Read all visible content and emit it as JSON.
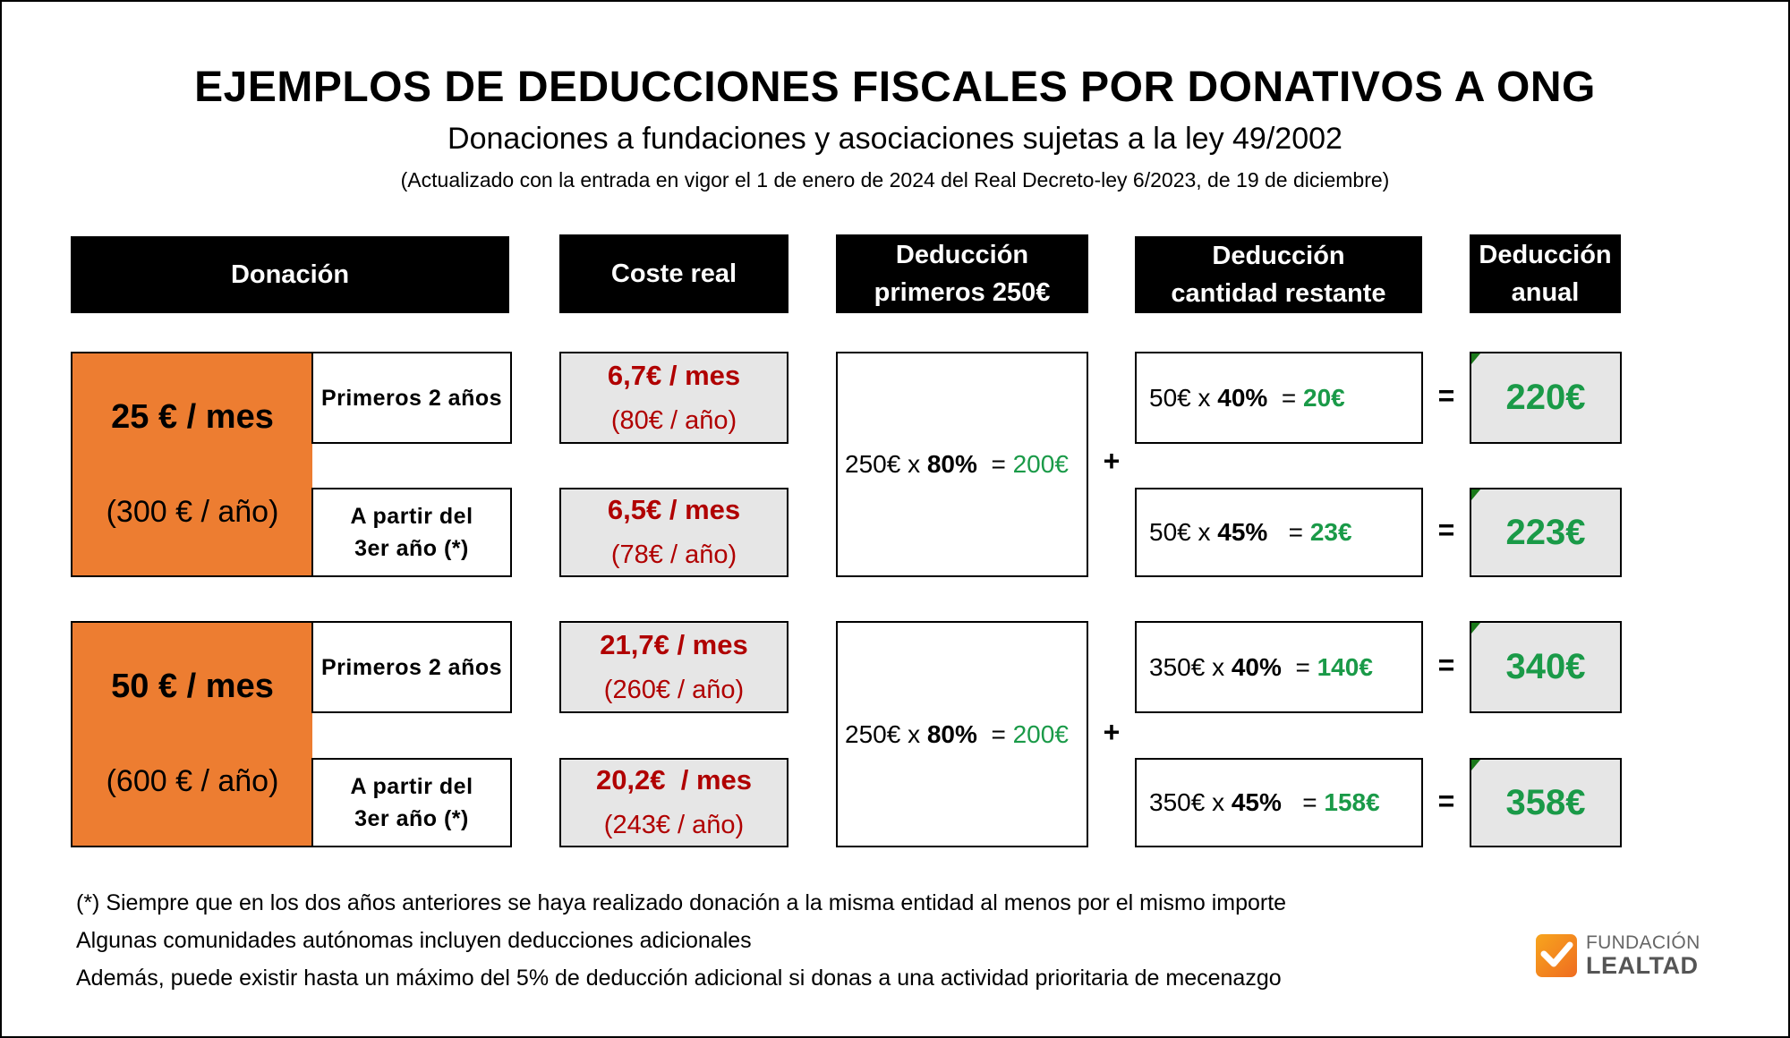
{
  "title": "EJEMPLOS DE DEDUCCIONES FISCALES POR DONATIVOS A ONG",
  "subtitle": "Donaciones a fundaciones y asociaciones sujetas a la ley 49/2002",
  "note": "(Actualizado con la entrada en vigor el 1 de enero de 2024 del Real Decreto-ley 6/2023, de 19 de diciembre)",
  "headers": {
    "donacion": "Donación",
    "coste": "Coste real",
    "ded1_line1": "Deducción",
    "ded1_line2": "primeros 250€",
    "ded2_line1": "Deducción",
    "ded2_line2": "cantidad restante",
    "ded3_line1": "Deducción",
    "ded3_line2": "anual"
  },
  "colors": {
    "orange": "#ED7D31",
    "red": "#B00000",
    "green": "#1A9A48",
    "gray": "#E6E6E6"
  },
  "groups": [
    {
      "monthly": "25 € / mes",
      "yearly": "(300 € / año)",
      "first": {
        "base": "250€",
        "x": "x",
        "pct": "80%",
        "eq": "=",
        "result": "200€"
      },
      "plus": "+",
      "rows": [
        {
          "label1": "Primeros 2 años",
          "label2": "",
          "cost_month": "6,7€ / mes",
          "cost_year": "(80€ / año)",
          "rest_base": "50€",
          "rest_x": "x",
          "rest_pct": "40%",
          "rest_eq": "=",
          "rest_result": "20€",
          "equals": "=",
          "total": "220€"
        },
        {
          "label1": "A partir del",
          "label2": "3er año (*)",
          "cost_month": "6,5€ / mes",
          "cost_year": "(78€ / año)",
          "rest_base": "50€",
          "rest_x": "x",
          "rest_pct": "45%",
          "rest_eq": "=",
          "rest_result": "23€",
          "equals": "=",
          "total": "223€"
        }
      ]
    },
    {
      "monthly": "50 € / mes",
      "yearly": "(600 € / año)",
      "first": {
        "base": "250€",
        "x": "x",
        "pct": "80%",
        "eq": "=",
        "result": "200€"
      },
      "plus": "+",
      "rows": [
        {
          "label1": "Primeros 2 años",
          "label2": "",
          "cost_month": "21,7€ / mes",
          "cost_year": "(260€ / año)",
          "rest_base": "350€",
          "rest_x": "x",
          "rest_pct": "40%",
          "rest_eq": "=",
          "rest_result": "140€",
          "equals": "=",
          "total": "340€"
        },
        {
          "label1": "A partir del",
          "label2": "3er año (*)",
          "cost_month": "20,2€  / mes",
          "cost_year": "(243€ / año)",
          "rest_base": "350€",
          "rest_x": "x",
          "rest_pct": "45%",
          "rest_eq": "=",
          "rest_result": "158€",
          "equals": "=",
          "total": "358€"
        }
      ]
    }
  ],
  "footnotes": [
    "(*) Siempre que en los dos años anteriores se haya realizado donación a la misma entidad al menos por el mismo importe",
    "Algunas comunidades autónomas incluyen deducciones adicionales",
    "Además, puede existir hasta un máximo del 5% de deducción adicional si donas a una actividad prioritaria de mecenazgo"
  ],
  "logo": {
    "line1": "FUNDACIÓN",
    "line2": "LEALTAD",
    "icon": "checkmark-icon"
  }
}
